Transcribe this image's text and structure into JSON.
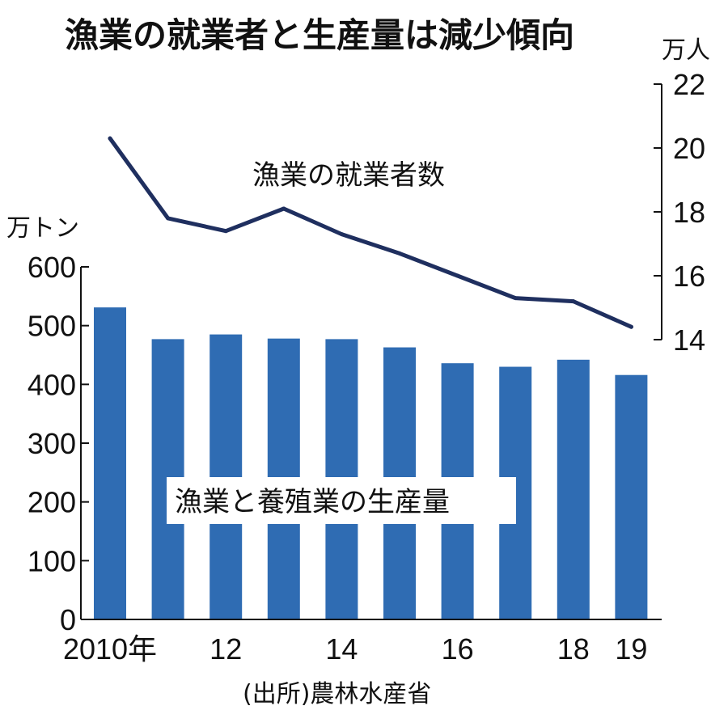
{
  "chart_data": {
    "type": "bar+line",
    "title": "漁業の就業者と生産量は減少傾向",
    "years": [
      "2010",
      "2011",
      "2012",
      "2013",
      "2014",
      "2015",
      "2016",
      "2017",
      "2018",
      "2019"
    ],
    "x_tick_labels": [
      "2010年",
      "",
      "12",
      "",
      "14",
      "",
      "16",
      "",
      "18",
      "19"
    ],
    "bar_series": {
      "name": "漁業と養殖業の生産量",
      "unit": "万トン",
      "values": [
        531,
        477,
        485,
        478,
        477,
        463,
        436,
        430,
        442,
        416
      ],
      "ylim": [
        0,
        600
      ],
      "ticks": [
        0,
        100,
        200,
        300,
        400,
        500,
        600
      ],
      "color": "#2f6cb3"
    },
    "line_series": {
      "name": "漁業の就業者数",
      "unit": "万人",
      "values": [
        20.3,
        17.8,
        17.4,
        18.1,
        17.3,
        16.7,
        16.0,
        15.3,
        15.2,
        14.4
      ],
      "ylim": [
        14,
        22
      ],
      "ticks": [
        14,
        16,
        18,
        20,
        22
      ],
      "color": "#1f2f5f"
    },
    "source": "(出所)農林水産省"
  }
}
